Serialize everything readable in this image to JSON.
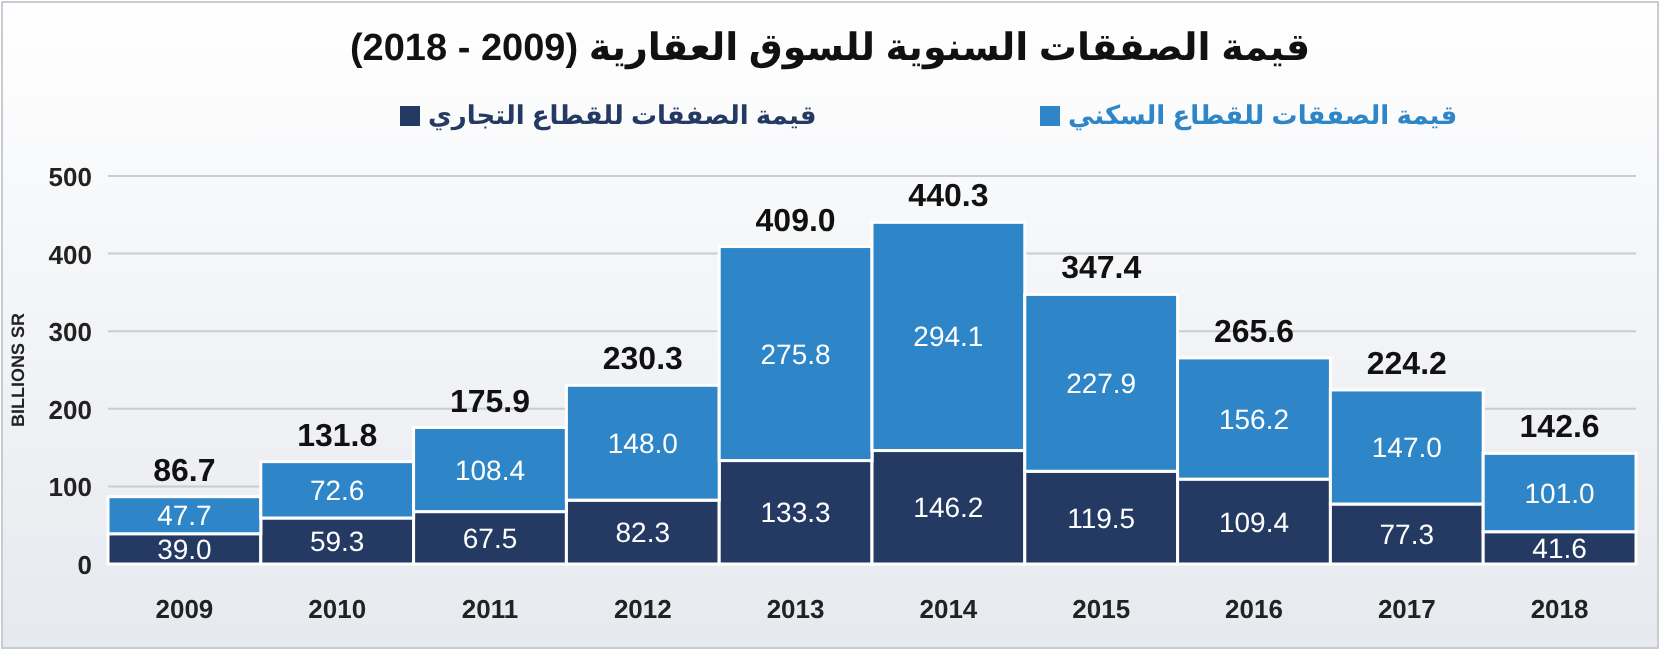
{
  "chart_data": {
    "type": "bar",
    "title": "قيمة الصفقات السنوية للسوق العقارية (2009 - 2018)",
    "ylabel": "BILLIONS SR",
    "categories": [
      "2009",
      "2010",
      "2011",
      "2012",
      "2013",
      "2014",
      "2015",
      "2016",
      "2017",
      "2018"
    ],
    "stacked": true,
    "series": [
      {
        "name": "قيمة الصفقات للقطاع التجاري",
        "color": "#243a63",
        "values": [
          39.0,
          59.3,
          67.5,
          82.3,
          133.3,
          146.2,
          119.5,
          109.4,
          77.3,
          41.6
        ],
        "value_labels": [
          "39.0",
          "59.3",
          "67.5",
          "82.3",
          "133.3",
          "146.2",
          "119.5",
          "109.4",
          "77.3",
          "41.6"
        ]
      },
      {
        "name": "قيمة الصفقات للقطاع السكني",
        "color": "#2e86c8",
        "values": [
          47.7,
          72.6,
          108.4,
          148.0,
          275.8,
          294.1,
          227.9,
          156.2,
          147.0,
          101.0
        ],
        "value_labels": [
          "47.7",
          "72.6",
          "108.4",
          "148.0",
          "275.8",
          "294.1",
          "227.9",
          "156.2",
          "147.0",
          "101.0"
        ]
      }
    ],
    "totals": [
      "86.7",
      "131.8",
      "175.9",
      "230.3",
      "409.0",
      "440.3",
      "347.4",
      "265.6",
      "224.2",
      "142.6"
    ],
    "ylim": [
      0,
      500
    ],
    "yticks": [
      0,
      100,
      200,
      300,
      400,
      500
    ],
    "grid": "y",
    "legend": "top"
  }
}
